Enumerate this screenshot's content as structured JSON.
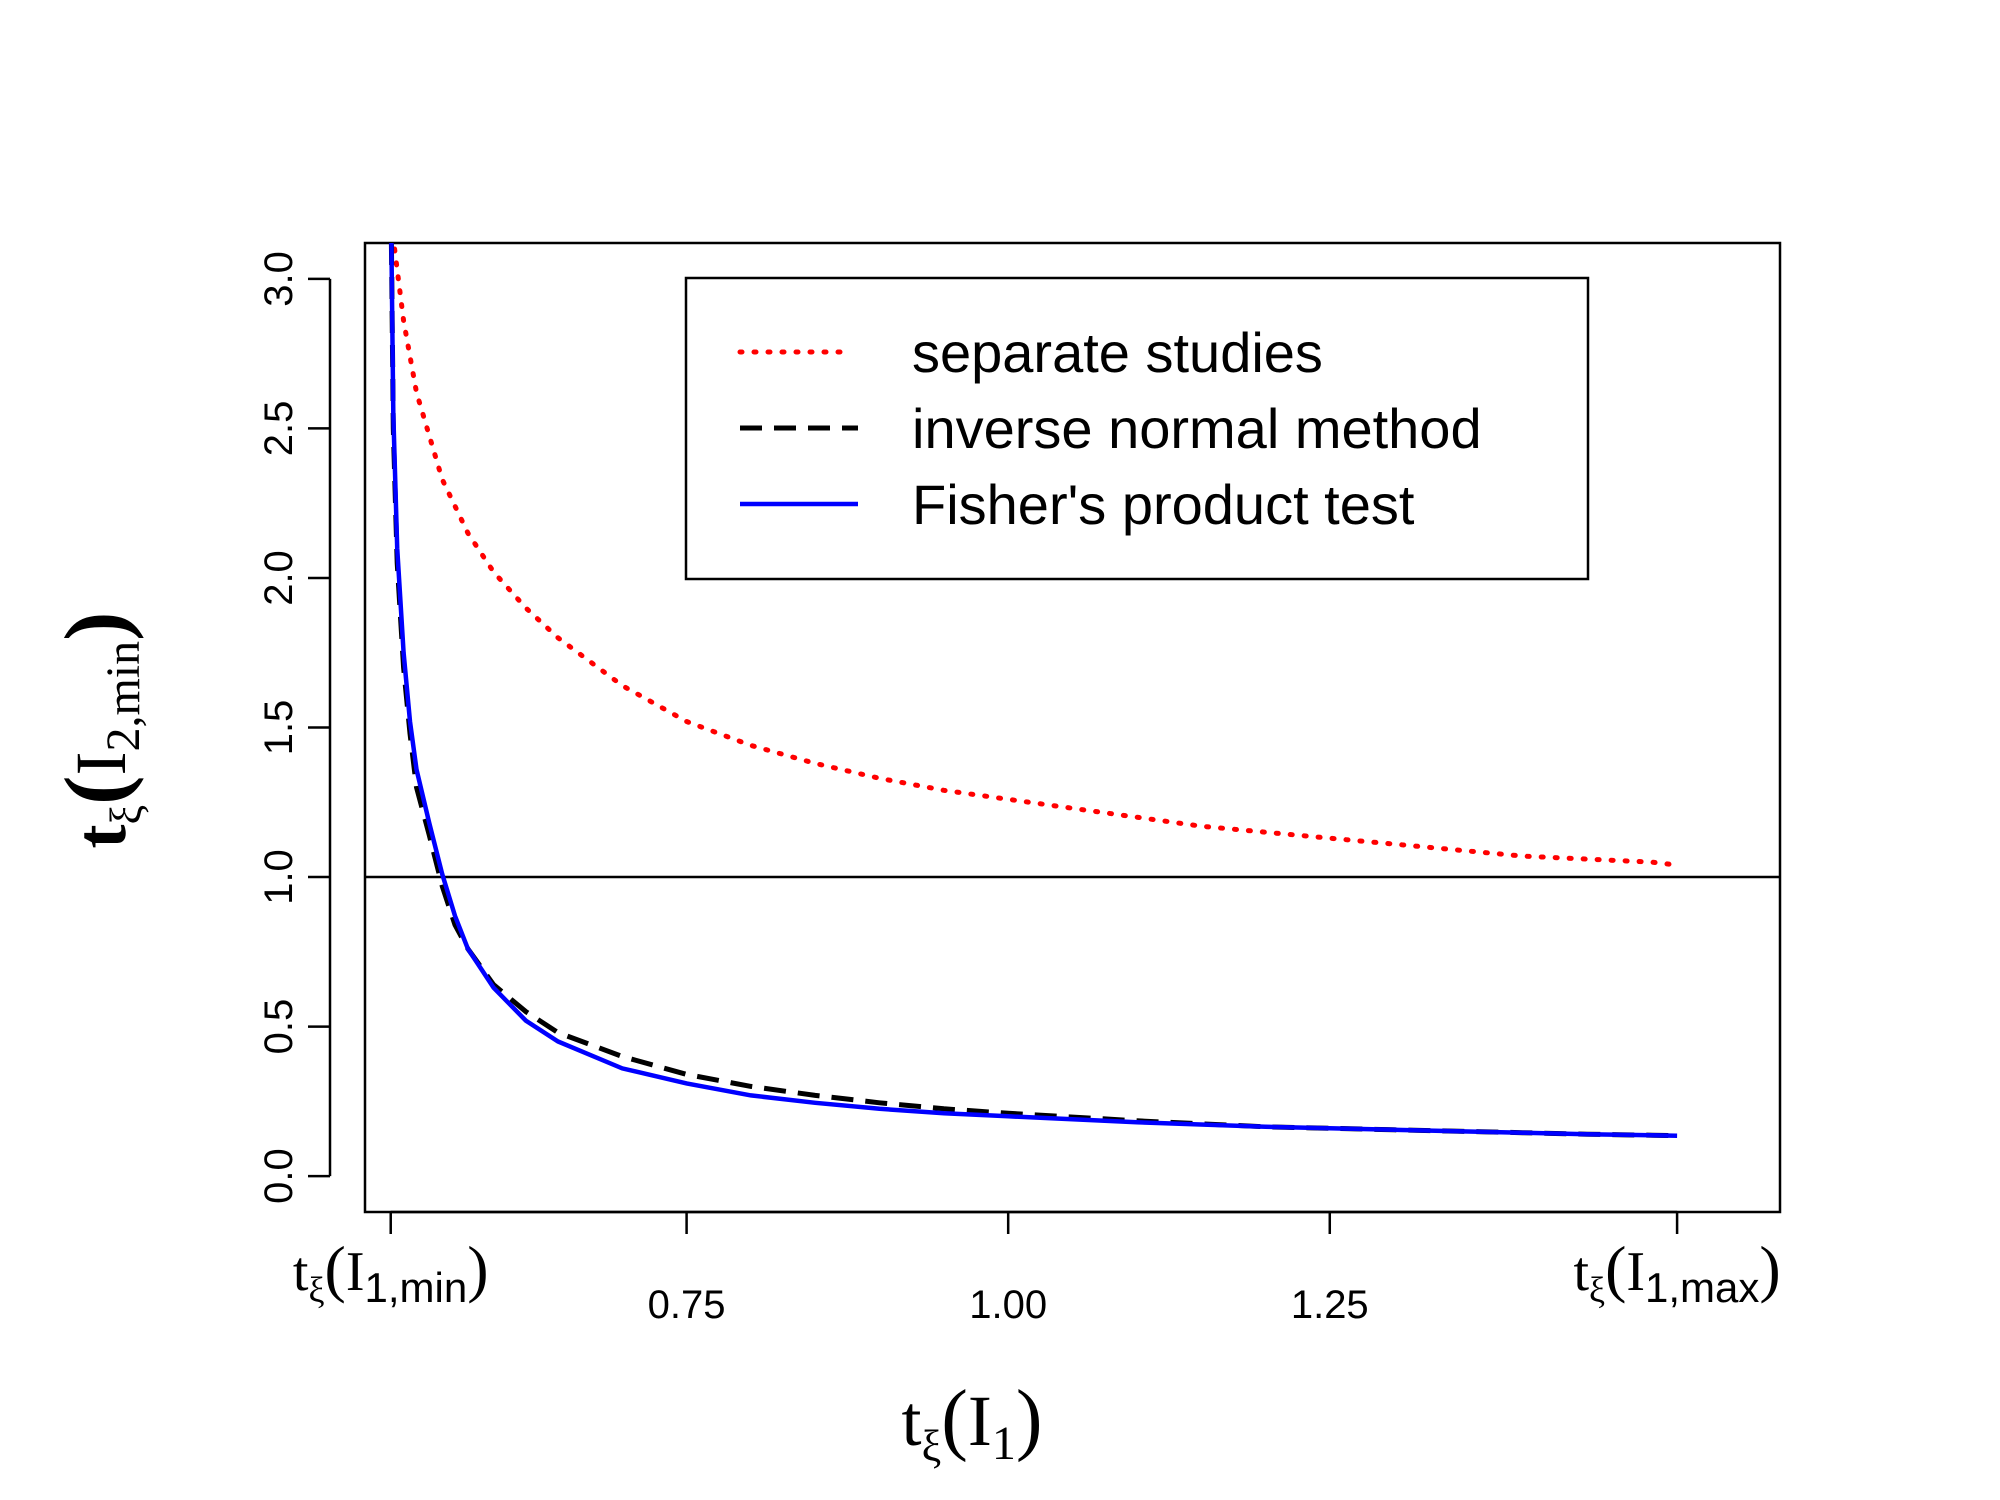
{
  "chart_data": {
    "type": "line",
    "x_axis": {
      "label": {
        "base": "t",
        "sub": "ξ",
        "paren_open": "(",
        "var": "I",
        "var_sub": "1",
        "paren_close": ")"
      },
      "range": [
        0.5,
        1.6
      ],
      "ticks": [
        {
          "value": 0.52,
          "kind": "math",
          "base": "t",
          "sub": "ξ",
          "open": "(",
          "var": "I",
          "var_sub": "1,min",
          "close": ")"
        },
        {
          "value": 0.75,
          "kind": "text",
          "text": "0.75"
        },
        {
          "value": 1.0,
          "kind": "text",
          "text": "1.00"
        },
        {
          "value": 1.25,
          "kind": "text",
          "text": "1.25"
        },
        {
          "value": 1.52,
          "kind": "math",
          "base": "t",
          "sub": "ξ",
          "open": "(",
          "var": "I",
          "var_sub": "1,max",
          "close": ")"
        }
      ]
    },
    "y_axis": {
      "label": {
        "base": "t",
        "sub": "ξ",
        "paren_open": "(",
        "var": "I",
        "var_sub": "2,min",
        "paren_close": ")"
      },
      "range": [
        -0.12,
        3.12
      ],
      "ticks": [
        "0.0",
        "0.5",
        "1.0",
        "1.5",
        "2.0",
        "2.5",
        "3.0"
      ],
      "tick_values": [
        0.0,
        0.5,
        1.0,
        1.5,
        2.0,
        2.5,
        3.0
      ]
    },
    "reference_line": {
      "y": 1.0,
      "color": "#000000"
    },
    "legend": {
      "placement": "top-right",
      "entries": [
        {
          "label": "separate studies",
          "style": "dotted",
          "color": "#ff0000"
        },
        {
          "label": "inverse normal method",
          "style": "dashed",
          "color": "#000000"
        },
        {
          "label": "Fisher's product test",
          "style": "solid",
          "color": "#0000ff"
        }
      ]
    },
    "series": [
      {
        "name": "separate studies",
        "style": "dotted",
        "color": "#ff0000",
        "x": [
          0.523,
          0.53,
          0.54,
          0.56,
          0.58,
          0.6,
          0.625,
          0.65,
          0.7,
          0.75,
          0.8,
          0.85,
          0.9,
          0.95,
          1.0,
          1.05,
          1.1,
          1.15,
          1.2,
          1.25,
          1.3,
          1.35,
          1.4,
          1.45,
          1.5,
          1.52
        ],
        "y": [
          3.1,
          2.86,
          2.62,
          2.33,
          2.15,
          2.02,
          1.9,
          1.8,
          1.64,
          1.52,
          1.44,
          1.38,
          1.33,
          1.29,
          1.26,
          1.23,
          1.2,
          1.17,
          1.15,
          1.13,
          1.11,
          1.09,
          1.07,
          1.06,
          1.05,
          1.04
        ]
      },
      {
        "name": "inverse normal method",
        "style": "dashed",
        "color": "#000000",
        "x": [
          0.5205,
          0.522,
          0.525,
          0.53,
          0.535,
          0.54,
          0.55,
          0.56,
          0.57,
          0.58,
          0.6,
          0.625,
          0.65,
          0.7,
          0.75,
          0.8,
          0.85,
          0.9,
          0.95,
          1.0,
          1.1,
          1.2,
          1.3,
          1.4,
          1.45,
          1.52
        ],
        "y": [
          3.12,
          2.5,
          2.05,
          1.7,
          1.48,
          1.3,
          1.14,
          0.97,
          0.84,
          0.76,
          0.64,
          0.55,
          0.48,
          0.4,
          0.34,
          0.3,
          0.27,
          0.245,
          0.225,
          0.21,
          0.185,
          0.165,
          0.155,
          0.145,
          0.14,
          0.135
        ]
      },
      {
        "name": "Fisher's product test",
        "style": "solid",
        "color": "#0000ff",
        "x": [
          0.5205,
          0.522,
          0.525,
          0.53,
          0.535,
          0.54,
          0.55,
          0.56,
          0.57,
          0.58,
          0.6,
          0.625,
          0.65,
          0.7,
          0.75,
          0.8,
          0.85,
          0.9,
          0.95,
          1.0,
          1.1,
          1.2,
          1.3,
          1.4,
          1.45,
          1.52
        ],
        "y": [
          3.12,
          2.55,
          2.1,
          1.75,
          1.52,
          1.36,
          1.18,
          1.01,
          0.87,
          0.76,
          0.63,
          0.52,
          0.45,
          0.36,
          0.31,
          0.27,
          0.245,
          0.225,
          0.21,
          0.2,
          0.18,
          0.165,
          0.155,
          0.145,
          0.14,
          0.135
        ]
      }
    ]
  }
}
